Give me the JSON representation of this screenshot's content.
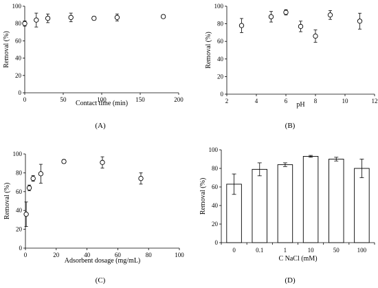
{
  "chart_data": [
    {
      "id": "A",
      "type": "scatter",
      "panel_label": "(A)",
      "xlabel": "Contact time (min)",
      "ylabel": "Removal (%)",
      "xlim": [
        0,
        200
      ],
      "ylim": [
        0,
        100
      ],
      "x_ticks": [
        0,
        50,
        100,
        150,
        200
      ],
      "y_ticks": [
        0,
        20,
        40,
        60,
        80,
        100
      ],
      "grid": false,
      "points": [
        {
          "x": 0,
          "y": 80,
          "err": 3
        },
        {
          "x": 15,
          "y": 84,
          "err": 8
        },
        {
          "x": 30,
          "y": 86,
          "err": 5
        },
        {
          "x": 60,
          "y": 87,
          "err": 5
        },
        {
          "x": 90,
          "y": 86,
          "err": 2
        },
        {
          "x": 120,
          "y": 87,
          "err": 4
        },
        {
          "x": 180,
          "y": 88,
          "err": 2
        }
      ]
    },
    {
      "id": "B",
      "type": "scatter",
      "panel_label": "(B)",
      "xlabel": "pH",
      "ylabel": "Removal (%)",
      "xlim": [
        2,
        12
      ],
      "ylim": [
        0,
        100
      ],
      "x_ticks": [
        2,
        4,
        6,
        8,
        10,
        12
      ],
      "y_ticks": [
        0,
        20,
        40,
        60,
        80,
        100
      ],
      "grid": false,
      "points": [
        {
          "x": 3,
          "y": 78,
          "err": 8
        },
        {
          "x": 5,
          "y": 88,
          "err": 6
        },
        {
          "x": 6,
          "y": 93,
          "err": 3
        },
        {
          "x": 7,
          "y": 77,
          "err": 6
        },
        {
          "x": 8,
          "y": 66,
          "err": 7
        },
        {
          "x": 9,
          "y": 90,
          "err": 5
        },
        {
          "x": 11,
          "y": 83,
          "err": 9
        }
      ]
    },
    {
      "id": "C",
      "type": "scatter",
      "panel_label": "(C)",
      "xlabel": "Adsorbent dosage (mg/mL)",
      "ylabel": "Removal (%)",
      "xlim": [
        0,
        100
      ],
      "ylim": [
        0,
        100
      ],
      "x_ticks": [
        0,
        20,
        40,
        60,
        80,
        100
      ],
      "y_ticks": [
        0,
        20,
        40,
        60,
        80,
        100
      ],
      "grid": false,
      "points": [
        {
          "x": 0.5,
          "y": 36,
          "err": 13
        },
        {
          "x": 2.5,
          "y": 64,
          "err": 3
        },
        {
          "x": 5,
          "y": 74,
          "err": 3
        },
        {
          "x": 10,
          "y": 79,
          "err": 10
        },
        {
          "x": 25,
          "y": 92,
          "err": 2
        },
        {
          "x": 50,
          "y": 91,
          "err": 6
        },
        {
          "x": 75,
          "y": 74,
          "err": 6
        }
      ]
    },
    {
      "id": "D",
      "type": "bar",
      "panel_label": "(D)",
      "xlabel": "C NaCl (mM)",
      "ylabel": "Removal (%)",
      "ylim": [
        0,
        100
      ],
      "y_ticks": [
        0,
        20,
        40,
        60,
        80,
        100
      ],
      "grid": false,
      "categories": [
        "0",
        "0.1",
        "1",
        "10",
        "50",
        "100"
      ],
      "values": [
        63,
        79,
        84,
        93,
        90,
        80
      ],
      "errors": [
        11,
        7,
        2,
        1,
        2,
        10
      ]
    }
  ]
}
